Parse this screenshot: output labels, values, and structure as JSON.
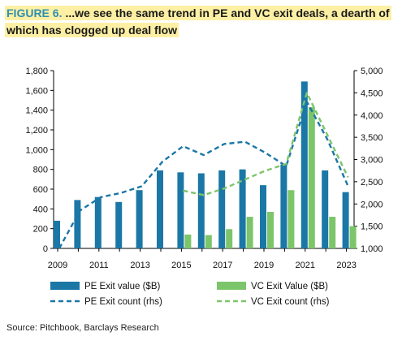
{
  "figure_label": "FIGURE 6.",
  "title_line1": "...we see the same trend in PE and VC exit deals, a dearth of",
  "title_line2": "which has clogged up deal flow",
  "source": "Source: Pitchbook, Barclays Research",
  "colors": {
    "pe": "#1b77a6",
    "vc": "#7cc56a"
  },
  "chart_data": {
    "type": "bar",
    "title": "...we see the same trend in PE and VC exit deals, a dearth of which has clogged up deal flow",
    "x": [
      2009,
      2010,
      2011,
      2012,
      2013,
      2014,
      2015,
      2016,
      2017,
      2018,
      2019,
      2020,
      2021,
      2022,
      2023
    ],
    "x_tick_labels": [
      "2009",
      "2011",
      "2013",
      "2015",
      "2017",
      "2019",
      "2021",
      "2023"
    ],
    "ylim_left": [
      0,
      1800
    ],
    "yticks_left": [
      "0",
      "200",
      "400",
      "600",
      "800",
      "1,000",
      "1,200",
      "1,400",
      "1,600",
      "1,800"
    ],
    "ylim_right": [
      1000,
      5000
    ],
    "yticks_right": [
      "1,000",
      "1,500",
      "2,000",
      "2,500",
      "3,000",
      "3,500",
      "4,000",
      "4,500",
      "5,000"
    ],
    "series": [
      {
        "name": "PE Exit value ($B)",
        "kind": "bar",
        "axis": "left",
        "values": [
          280,
          490,
          520,
          470,
          590,
          790,
          770,
          760,
          790,
          800,
          640,
          850,
          1690,
          790,
          570
        ]
      },
      {
        "name": "VC Exit Value ($B)",
        "kind": "bar",
        "axis": "left",
        "values": [
          null,
          null,
          null,
          null,
          null,
          null,
          140,
          135,
          195,
          320,
          370,
          590,
          1430,
          320,
          225
        ]
      },
      {
        "name": "PE Exit count (rhs)",
        "kind": "line",
        "axis": "right",
        "values": [
          1000,
          1850,
          2150,
          2250,
          2400,
          2950,
          3300,
          3100,
          3350,
          3400,
          3150,
          2850,
          4300,
          3450,
          2400
        ]
      },
      {
        "name": "VC Exit count (rhs)",
        "kind": "line",
        "axis": "right",
        "values": [
          null,
          null,
          null,
          null,
          null,
          null,
          2300,
          2200,
          2350,
          2550,
          2750,
          2900,
          4500,
          3550,
          2600
        ]
      }
    ],
    "legend": "bottom",
    "grid": false
  }
}
